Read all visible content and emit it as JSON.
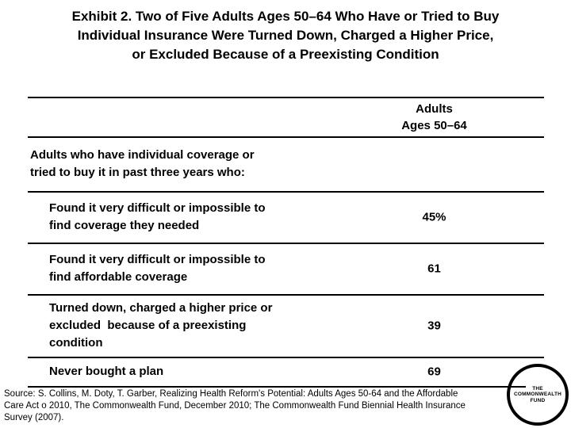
{
  "title": "Exhibit 2. Two of Five Adults Ages 50–64 Who Have or Tried to Buy\nIndividual Insurance Were Turned Down, Charged a Higher Price,\nor Excluded Because of a Preexisting Condition",
  "table": {
    "column_header": "Adults\nAges 50–64",
    "intro": "Adults who have individual coverage or\ntried to buy it in past three years who:",
    "rows": [
      {
        "label": "Found it very difficult or impossible to\nfind coverage they needed",
        "value": "45%"
      },
      {
        "label": "Found it very difficult or impossible to\nfind affordable coverage",
        "value": "61"
      },
      {
        "label": "Turned down, charged a higher price or\nexcluded  because of a preexisting\ncondition",
        "value": "39"
      },
      {
        "label": "Never bought a plan",
        "value": "69"
      }
    ]
  },
  "source_note": "Source: S. Collins, M. Doty, T. Garber, Realizing Health Reform's Potential: Adults Ages 50-64 and the Affordable\nCare Act o 2010, The Commonwealth Fund, December 2010; The Commonwealth Fund Biennial Health Insurance\nSurvey (2007).",
  "logo": {
    "line1": "THE",
    "line2": "COMMONWEALTH",
    "line3": "FUND"
  },
  "colors": {
    "background": "#ffffff",
    "text": "#000000",
    "rule": "#000000"
  }
}
